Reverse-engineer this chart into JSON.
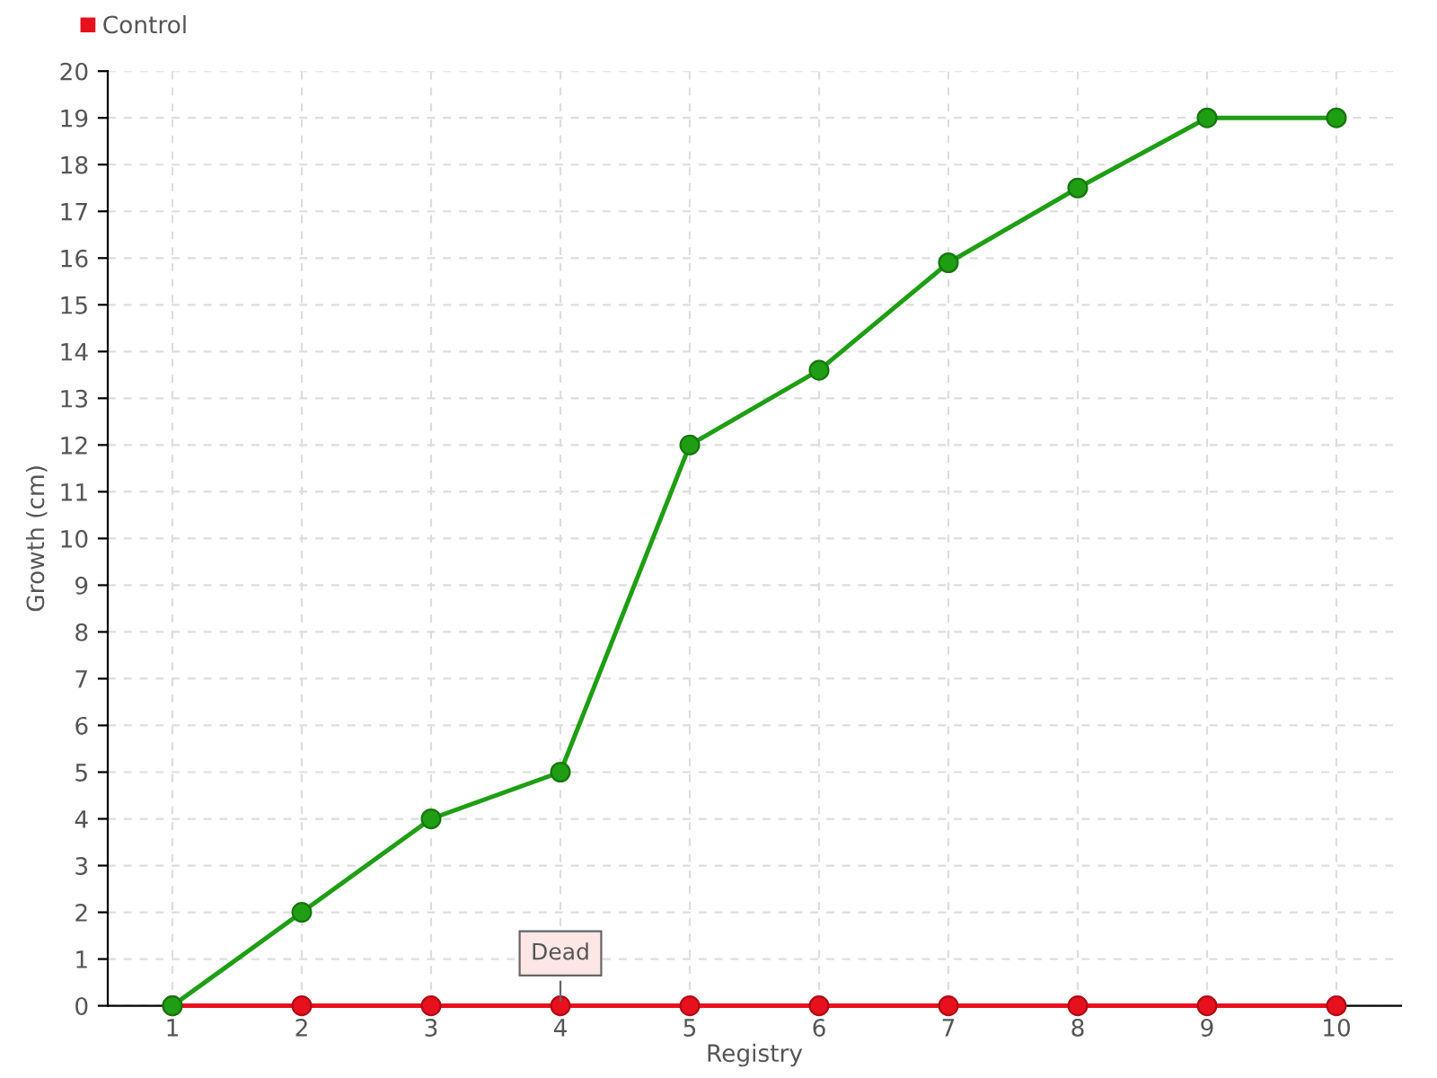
{
  "chart_data": {
    "type": "line",
    "xlabel": "Registry",
    "ylabel": "Growth (cm)",
    "categories": [
      "1",
      "2",
      "3",
      "4",
      "5",
      "6",
      "7",
      "8",
      "9",
      "10"
    ],
    "series": [
      {
        "color": "#1f9e14",
        "values": [
          0,
          2,
          4,
          5,
          12,
          13.6,
          15.9,
          17.5,
          19,
          19
        ]
      },
      {
        "name": "Control",
        "color": "#e8101c",
        "values": [
          0,
          0,
          0,
          0,
          0,
          0,
          0,
          0,
          0,
          0
        ]
      }
    ],
    "ylim": [
      0,
      20
    ],
    "yticks": [
      0,
      1,
      2,
      3,
      4,
      5,
      6,
      7,
      8,
      9,
      10,
      11,
      12,
      13,
      14,
      15,
      16,
      17,
      18,
      19,
      20
    ],
    "annotations": [
      {
        "text": "Dead",
        "x": "4",
        "y": 0
      }
    ],
    "grid": true,
    "legend": "top left",
    "marker": "circle",
    "line_style": "solid"
  }
}
